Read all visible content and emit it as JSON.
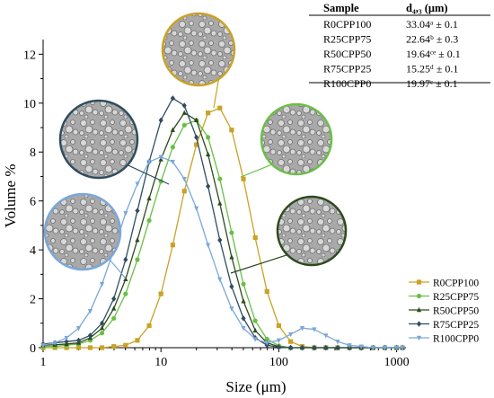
{
  "chart_data": {
    "type": "line",
    "xlabel": "Size (μm)",
    "ylabel": "Volume %",
    "xscale": "log",
    "xlim": [
      1,
      1200
    ],
    "ylim": [
      0,
      12.6
    ],
    "xticks": [
      {
        "value": 1,
        "label": "1"
      },
      {
        "value": 10,
        "label": "10"
      },
      {
        "value": 100,
        "label": "100"
      },
      {
        "value": 1000,
        "label": "1000"
      }
    ],
    "yticks": [
      0,
      2,
      4,
      6,
      8,
      10,
      12
    ],
    "grid": false,
    "legend_position": "bottom-right",
    "x": [
      1,
      1.26,
      1.58,
      2,
      2.51,
      3.16,
      3.98,
      5.01,
      6.31,
      7.94,
      10,
      12.6,
      15.8,
      20,
      25.1,
      31.6,
      39.8,
      50.1,
      63.1,
      79.4,
      100,
      126,
      158,
      200,
      251,
      316,
      398,
      501,
      631,
      794,
      1000,
      1120
    ],
    "series": [
      {
        "name": "R0CPP100",
        "color": "#c9a227",
        "marker": "square",
        "values": [
          0,
          0,
          0,
          0,
          0,
          0,
          0.05,
          0.1,
          0.3,
          0.9,
          2.2,
          4.2,
          6.4,
          8.3,
          9.6,
          9.8,
          8.9,
          6.9,
          4.5,
          2.3,
          0.9,
          0.25,
          0.05,
          0,
          0,
          0,
          0,
          0,
          0,
          0,
          0,
          0
        ]
      },
      {
        "name": "R25CPP75",
        "color": "#6abf45",
        "marker": "circle",
        "values": [
          0.05,
          0.05,
          0.1,
          0.15,
          0.3,
          0.6,
          1.2,
          2.2,
          3.6,
          5.2,
          6.8,
          8.2,
          9.1,
          9.3,
          8.6,
          6.9,
          4.7,
          2.6,
          1.1,
          0.35,
          0.08,
          0,
          0,
          0,
          0,
          0,
          0,
          0,
          0,
          0,
          0,
          0
        ]
      },
      {
        "name": "R50CPP50",
        "color": "#2d4a1e",
        "marker": "triangle",
        "values": [
          0.1,
          0.12,
          0.15,
          0.2,
          0.4,
          0.8,
          1.6,
          2.8,
          4.4,
          6.1,
          7.7,
          8.9,
          9.6,
          9.3,
          7.9,
          5.9,
          3.7,
          1.9,
          0.7,
          0.2,
          0.04,
          0,
          0,
          0,
          0,
          0,
          0,
          0,
          0,
          0,
          0,
          0
        ]
      },
      {
        "name": "R75CPP25",
        "color": "#2f4d5e",
        "marker": "diamond",
        "values": [
          0.15,
          0.2,
          0.25,
          0.3,
          0.5,
          1.0,
          2.0,
          3.6,
          5.6,
          7.6,
          9.3,
          10.2,
          9.9,
          8.6,
          6.6,
          4.4,
          2.5,
          1.2,
          0.4,
          0.1,
          0.02,
          0,
          0,
          0,
          0,
          0,
          0,
          0,
          0,
          0,
          0,
          0
        ]
      },
      {
        "name": "R100CPP0",
        "color": "#7aa7d9",
        "marker": "triangle-down",
        "values": [
          0.1,
          0.2,
          0.4,
          0.8,
          1.5,
          2.6,
          4.0,
          5.5,
          6.7,
          7.6,
          7.8,
          7.6,
          6.9,
          5.7,
          4.2,
          2.8,
          1.6,
          0.8,
          0.35,
          0.2,
          0.3,
          0.55,
          0.8,
          0.75,
          0.5,
          0.25,
          0.1,
          0.05,
          0,
          0,
          0,
          0
        ]
      }
    ],
    "inset_table": {
      "headers": [
        "Sample",
        "d₄,₃ (μm)"
      ],
      "rows": [
        [
          "R0CPP100",
          "33.04ᵃ ± 0.1"
        ],
        [
          "R25CPP75",
          "22.64ᵇ ± 0.3"
        ],
        [
          "R50CPP50",
          "19.64ᶜᵉ ± 0.1"
        ],
        [
          "R75CPP25",
          "15.25ᵈ ± 0.1"
        ],
        [
          "R100CPP0",
          "19.97ᶜ ± 0.1"
        ]
      ]
    },
    "micrographs": [
      {
        "series": "R0CPP100",
        "border": "#c9a227"
      },
      {
        "series": "R25CPP75",
        "border": "#6abf45"
      },
      {
        "series": "R50CPP50",
        "border": "#2d4a1e"
      },
      {
        "series": "R75CPP25",
        "border": "#2f4d5e"
      },
      {
        "series": "R100CPP0",
        "border": "#7aa7d9"
      }
    ]
  }
}
